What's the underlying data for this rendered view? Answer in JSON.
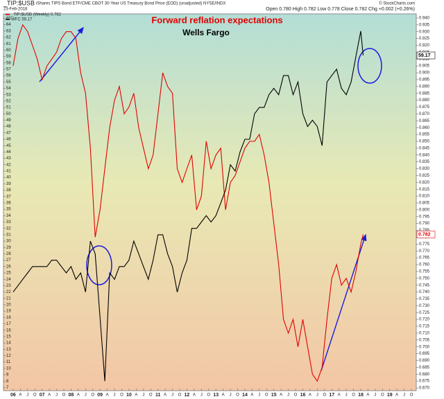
{
  "chart_data": {
    "type": "line",
    "header": {
      "symbol": "_TIP:$USB",
      "description": "iShares TIPS Bond ETF/CME CBOT 30-Year US Treasury Bond Price (EOD) (unadjusted) NYSE/INDX",
      "date": "23-Feb-2018",
      "quote": "Open 0.780  High 0.782  Low 0.778  Close 0.782  Chg +0.002 (+0.26%)",
      "credit": "© StockCharts.com"
    },
    "title": "Forward reflation expectations",
    "subtitle": "Wells Fargo",
    "x": [
      "2006-01",
      "2006-03",
      "2006-05",
      "2006-07",
      "2006-09",
      "2006-11",
      "2007-01",
      "2007-03",
      "2007-05",
      "2007-07",
      "2007-09",
      "2007-11",
      "2008-01",
      "2008-03",
      "2008-05",
      "2008-07",
      "2008-09",
      "2008-11",
      "2009-01",
      "2009-03",
      "2009-05",
      "2009-07",
      "2009-09",
      "2009-11",
      "2010-01",
      "2010-03",
      "2010-05",
      "2010-07",
      "2010-09",
      "2010-11",
      "2011-01",
      "2011-03",
      "2011-05",
      "2011-07",
      "2011-09",
      "2011-11",
      "2012-01",
      "2012-03",
      "2012-05",
      "2012-07",
      "2012-09",
      "2012-11",
      "2013-01",
      "2013-03",
      "2013-05",
      "2013-07",
      "2013-09",
      "2013-11",
      "2014-01",
      "2014-03",
      "2014-05",
      "2014-07",
      "2014-09",
      "2014-11",
      "2015-01",
      "2015-03",
      "2015-05",
      "2015-07",
      "2015-09",
      "2015-11",
      "2016-01",
      "2016-03",
      "2016-05",
      "2016-07",
      "2016-09",
      "2016-11",
      "2017-01",
      "2017-03",
      "2017-05",
      "2017-07",
      "2017-09",
      "2017-11",
      "2018-01",
      "2018-02"
    ],
    "series": [
      {
        "name": "_TIP:$USB (Weekly) 0.782",
        "color": "#e00000",
        "axis": "y2",
        "last_label": "0.782",
        "values": [
          0.905,
          0.925,
          0.935,
          0.93,
          0.92,
          0.91,
          0.895,
          0.905,
          0.91,
          0.915,
          0.925,
          0.93,
          0.93,
          0.925,
          0.9,
          0.885,
          0.845,
          0.78,
          0.8,
          0.83,
          0.86,
          0.88,
          0.89,
          0.87,
          0.875,
          0.885,
          0.86,
          0.845,
          0.83,
          0.84,
          0.87,
          0.9,
          0.89,
          0.885,
          0.83,
          0.82,
          0.83,
          0.84,
          0.8,
          0.81,
          0.85,
          0.83,
          0.84,
          0.845,
          0.8,
          0.82,
          0.825,
          0.835,
          0.845,
          0.85,
          0.85,
          0.855,
          0.84,
          0.82,
          0.79,
          0.76,
          0.72,
          0.71,
          0.72,
          0.7,
          0.72,
          0.7,
          0.68,
          0.675,
          0.685,
          0.72,
          0.75,
          0.76,
          0.745,
          0.75,
          0.74,
          0.755,
          0.775,
          0.782
        ]
      },
      {
        "name": "WFC 59.17",
        "color": "#000000",
        "axis": "y",
        "last_label": "59.17",
        "values": [
          22,
          23,
          24,
          25,
          26,
          26,
          26,
          26,
          27,
          27,
          26,
          25,
          26,
          24,
          25,
          22,
          30,
          28,
          18,
          8,
          25,
          24,
          26,
          26,
          27,
          30,
          28,
          26,
          24,
          27,
          31,
          31,
          28,
          26,
          22,
          25,
          27,
          32,
          32,
          33,
          34,
          33,
          34,
          36,
          38,
          42,
          41,
          44,
          46,
          46,
          50,
          51,
          51,
          53,
          54,
          53,
          56,
          56,
          53,
          55,
          50,
          48,
          49,
          48,
          45,
          55,
          56,
          57,
          54,
          53,
          55,
          59,
          63,
          59.17
        ]
      }
    ],
    "xlim": [
      "2005-09",
      "2019-12"
    ],
    "xticks": [
      {
        "value": "2006-01",
        "label": "06"
      },
      {
        "value": "2006-04",
        "label": "A"
      },
      {
        "value": "2006-07",
        "label": "J"
      },
      {
        "value": "2006-10",
        "label": "O"
      },
      {
        "value": "2007-01",
        "label": "07"
      },
      {
        "value": "2007-04",
        "label": "A"
      },
      {
        "value": "2007-07",
        "label": "J"
      },
      {
        "value": "2007-10",
        "label": "O"
      },
      {
        "value": "2008-01",
        "label": "08"
      },
      {
        "value": "2008-04",
        "label": "A"
      },
      {
        "value": "2008-07",
        "label": "J"
      },
      {
        "value": "2008-10",
        "label": "O"
      },
      {
        "value": "2009-01",
        "label": "09"
      },
      {
        "value": "2009-04",
        "label": "A"
      },
      {
        "value": "2009-07",
        "label": "J"
      },
      {
        "value": "2009-10",
        "label": "O"
      },
      {
        "value": "2010-01",
        "label": "10"
      },
      {
        "value": "2010-04",
        "label": "A"
      },
      {
        "value": "2010-07",
        "label": "J"
      },
      {
        "value": "2010-10",
        "label": "O"
      },
      {
        "value": "2011-01",
        "label": "11"
      },
      {
        "value": "2011-04",
        "label": "A"
      },
      {
        "value": "2011-07",
        "label": "J"
      },
      {
        "value": "2011-10",
        "label": "O"
      },
      {
        "value": "2012-01",
        "label": "12"
      },
      {
        "value": "2012-04",
        "label": "A"
      },
      {
        "value": "2012-07",
        "label": "J"
      },
      {
        "value": "2012-10",
        "label": "O"
      },
      {
        "value": "2013-01",
        "label": "13"
      },
      {
        "value": "2013-04",
        "label": "A"
      },
      {
        "value": "2013-07",
        "label": "J"
      },
      {
        "value": "2013-10",
        "label": "O"
      },
      {
        "value": "2014-01",
        "label": "14"
      },
      {
        "value": "2014-04",
        "label": "A"
      },
      {
        "value": "2014-07",
        "label": "J"
      },
      {
        "value": "2014-10",
        "label": "O"
      },
      {
        "value": "2015-01",
        "label": "15"
      },
      {
        "value": "2015-04",
        "label": "A"
      },
      {
        "value": "2015-07",
        "label": "J"
      },
      {
        "value": "2015-10",
        "label": "O"
      },
      {
        "value": "2016-01",
        "label": "16"
      },
      {
        "value": "2016-04",
        "label": "A"
      },
      {
        "value": "2016-07",
        "label": "J"
      },
      {
        "value": "2016-10",
        "label": "O"
      },
      {
        "value": "2017-01",
        "label": "17"
      },
      {
        "value": "2017-04",
        "label": "A"
      },
      {
        "value": "2017-07",
        "label": "J"
      },
      {
        "value": "2017-10",
        "label": "O"
      },
      {
        "value": "2018-01",
        "label": "18"
      },
      {
        "value": "2018-04",
        "label": "A"
      },
      {
        "value": "2018-07",
        "label": "J"
      },
      {
        "value": "2018-10",
        "label": "O"
      },
      {
        "value": "2019-01",
        "label": "19"
      },
      {
        "value": "2019-04",
        "label": "A"
      },
      {
        "value": "2019-07",
        "label": "J"
      },
      {
        "value": "2019-10",
        "label": "O"
      }
    ],
    "ylim": [
      6.5,
      65.7
    ],
    "yticks": [
      7,
      8,
      9,
      10,
      11,
      12,
      13,
      14,
      15,
      16,
      17,
      18,
      19,
      20,
      21,
      22,
      23,
      24,
      25,
      26,
      27,
      28,
      29,
      30,
      31,
      32,
      33,
      34,
      35,
      36,
      37,
      38,
      39,
      40,
      41,
      42,
      43,
      44,
      45,
      46,
      47,
      48,
      49,
      50,
      51,
      52,
      53,
      54,
      55,
      56,
      57,
      58,
      59,
      60,
      61,
      62,
      63,
      64,
      65
    ],
    "y2lim": [
      0.668,
      0.943
    ],
    "y2ticks": [
      {
        "value": 0.67,
        "label": "0.670"
      },
      {
        "value": 0.675,
        "label": "0.675"
      },
      {
        "value": 0.68,
        "label": "0.680"
      },
      {
        "value": 0.685,
        "label": "0.685"
      },
      {
        "value": 0.69,
        "label": "0.690"
      },
      {
        "value": 0.695,
        "label": "0.695"
      },
      {
        "value": 0.7,
        "label": "0.700"
      },
      {
        "value": 0.705,
        "label": "0.705"
      },
      {
        "value": 0.71,
        "label": "0.710"
      },
      {
        "value": 0.715,
        "label": "0.715"
      },
      {
        "value": 0.72,
        "label": "0.720"
      },
      {
        "value": 0.725,
        "label": "0.725"
      },
      {
        "value": 0.73,
        "label": "0.730"
      },
      {
        "value": 0.735,
        "label": "0.735"
      },
      {
        "value": 0.74,
        "label": "0.740"
      },
      {
        "value": 0.745,
        "label": "0.745"
      },
      {
        "value": 0.75,
        "label": "0.750"
      },
      {
        "value": 0.755,
        "label": "0.755"
      },
      {
        "value": 0.76,
        "label": "0.760"
      },
      {
        "value": 0.765,
        "label": "0.765"
      },
      {
        "value": 0.77,
        "label": "0.770"
      },
      {
        "value": 0.775,
        "label": "0.775"
      },
      {
        "value": 0.78,
        "label": "0.780"
      },
      {
        "value": 0.785,
        "label": "0.785"
      },
      {
        "value": 0.79,
        "label": "0.790"
      },
      {
        "value": 0.795,
        "label": "0.795"
      },
      {
        "value": 0.8,
        "label": "0.800"
      },
      {
        "value": 0.805,
        "label": "0.805"
      },
      {
        "value": 0.81,
        "label": "0.810"
      },
      {
        "value": 0.815,
        "label": "0.815"
      },
      {
        "value": 0.82,
        "label": "0.820"
      },
      {
        "value": 0.825,
        "label": "0.825"
      },
      {
        "value": 0.83,
        "label": "0.830"
      },
      {
        "value": 0.835,
        "label": "0.835"
      },
      {
        "value": 0.84,
        "label": "0.840"
      },
      {
        "value": 0.845,
        "label": "0.845"
      },
      {
        "value": 0.85,
        "label": "0.850"
      },
      {
        "value": 0.855,
        "label": "0.855"
      },
      {
        "value": 0.86,
        "label": "0.860"
      },
      {
        "value": 0.865,
        "label": "0.865"
      },
      {
        "value": 0.87,
        "label": "0.870"
      },
      {
        "value": 0.875,
        "label": "0.875"
      },
      {
        "value": 0.88,
        "label": "0.880"
      },
      {
        "value": 0.885,
        "label": "0.885"
      },
      {
        "value": 0.89,
        "label": "0.890"
      },
      {
        "value": 0.895,
        "label": "0.895"
      },
      {
        "value": 0.9,
        "label": "0.900"
      },
      {
        "value": 0.905,
        "label": "0.905"
      },
      {
        "value": 0.91,
        "label": "0.910"
      },
      {
        "value": 0.915,
        "label": "0.915"
      },
      {
        "value": 0.92,
        "label": "0.920"
      },
      {
        "value": 0.925,
        "label": "0.925"
      },
      {
        "value": 0.93,
        "label": "0.930"
      },
      {
        "value": 0.935,
        "label": "0.935"
      },
      {
        "value": 0.94,
        "label": "0.940"
      }
    ]
  }
}
